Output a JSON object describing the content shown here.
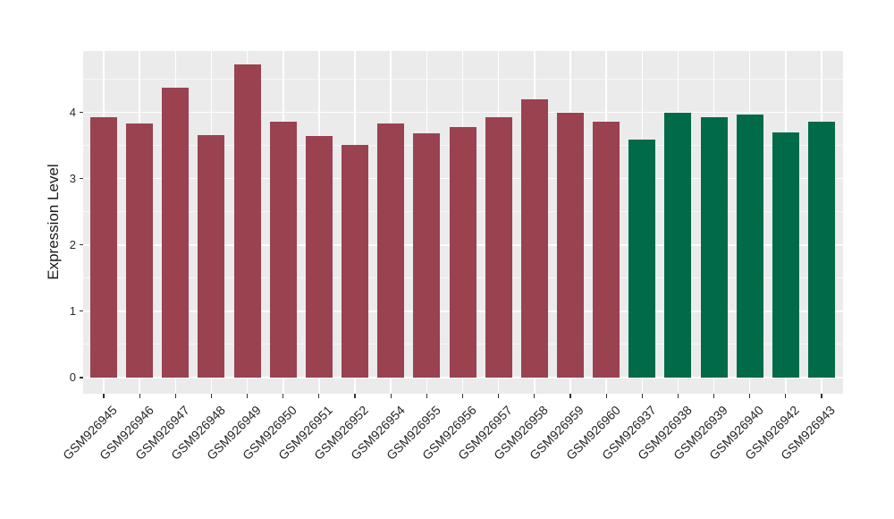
{
  "chart_data": {
    "type": "bar",
    "title": "",
    "xlabel": "",
    "ylabel": "Expression Level",
    "ylim": [
      0,
      4.97
    ],
    "yticks": [
      0,
      1,
      2,
      3,
      4
    ],
    "yticks_minor": [
      0.5,
      1.5,
      2.5,
      3.5,
      4.5
    ],
    "grid": "on",
    "legend_position": "none",
    "panel_background": "#EBEBEB",
    "grid_color": "#FFFFFF",
    "axis_text_color": "#2b2b2b",
    "group_colors": {
      "maroon": "#9A4250",
      "green": "#006A49"
    },
    "categories": [
      "GSM926945",
      "GSM926946",
      "GSM926947",
      "GSM926948",
      "GSM926949",
      "GSM926950",
      "GSM926951",
      "GSM926952",
      "GSM926954",
      "GSM926955",
      "GSM926956",
      "GSM926957",
      "GSM926958",
      "GSM926959",
      "GSM926960",
      "GSM926937",
      "GSM926938",
      "GSM926939",
      "GSM926940",
      "GSM926942",
      "GSM926943"
    ],
    "values": [
      3.93,
      3.83,
      4.37,
      3.66,
      4.72,
      3.86,
      3.65,
      3.51,
      3.83,
      3.69,
      3.78,
      3.93,
      4.2,
      4.0,
      3.86,
      3.59,
      4.0,
      3.93,
      3.97,
      3.7,
      3.86
    ],
    "bar_groups": [
      "maroon",
      "maroon",
      "maroon",
      "maroon",
      "maroon",
      "maroon",
      "maroon",
      "maroon",
      "maroon",
      "maroon",
      "maroon",
      "maroon",
      "maroon",
      "maroon",
      "maroon",
      "green",
      "green",
      "green",
      "green",
      "green",
      "green"
    ]
  }
}
